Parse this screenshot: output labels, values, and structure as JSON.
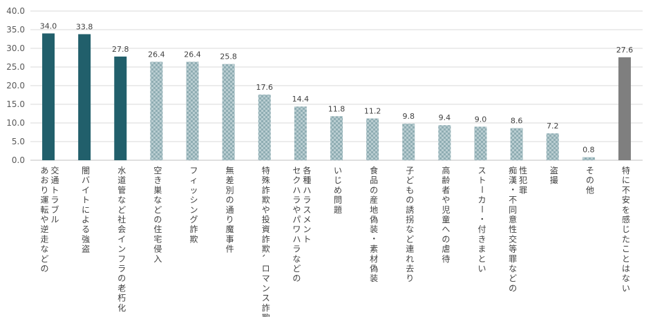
{
  "chart_data": {
    "type": "bar",
    "ylim": [
      0,
      40
    ],
    "yticks": [
      "0.0",
      "5.0",
      "10.0",
      "15.0",
      "20.0",
      "25.0",
      "30.0",
      "35.0",
      "40.0"
    ],
    "grid": true,
    "categories": [
      [
        "交通トラブル",
        "あおり運転や逆走などの"
      ],
      [
        "闇バイトによる強盗"
      ],
      [
        "水道管など社会インフラの老朽化"
      ],
      [
        "空き巣などの住宅侵入"
      ],
      [
        "フィッシング詐欺"
      ],
      [
        "無差別の通り魔事件"
      ],
      [
        "特殊詐欺や投資詐欺、ロマンス詐欺"
      ],
      [
        "各種ハラスメント",
        "セクハラやパワハラなどの"
      ],
      [
        "いじめ問題"
      ],
      [
        "食品の産地偽装・素材偽装"
      ],
      [
        "子どもの誘拐など連れ去り"
      ],
      [
        "高齢者や児童への虐待"
      ],
      [
        "ストーカー・付きまとい"
      ],
      [
        "性犯罪",
        "痴漢・不同意性交等罪などの"
      ],
      [
        "盗撮"
      ],
      [
        "その他"
      ],
      [
        "特に不安を感じたことはない"
      ]
    ],
    "values": [
      34.0,
      33.8,
      27.8,
      26.4,
      26.4,
      25.8,
      17.6,
      14.4,
      11.8,
      11.2,
      9.8,
      9.4,
      9.0,
      8.6,
      7.2,
      0.8,
      27.6
    ],
    "value_labels": [
      "34.0",
      "33.8",
      "27.8",
      "26.4",
      "26.4",
      "25.8",
      "17.6",
      "14.4",
      "11.8",
      "11.2",
      "9.8",
      "9.4",
      "9.0",
      "8.6",
      "7.2",
      "0.8",
      "27.6"
    ],
    "bar_styles": [
      "solid",
      "solid",
      "solid",
      "checker",
      "checker",
      "checker",
      "checker",
      "checker",
      "checker",
      "checker",
      "checker",
      "checker",
      "checker",
      "checker",
      "checker",
      "checker",
      "gray"
    ],
    "colors": {
      "solid": "#215f6b",
      "checker_a": "#8fadb3",
      "checker_b": "#b9cdd1",
      "gray": "#7f7f7f"
    }
  }
}
